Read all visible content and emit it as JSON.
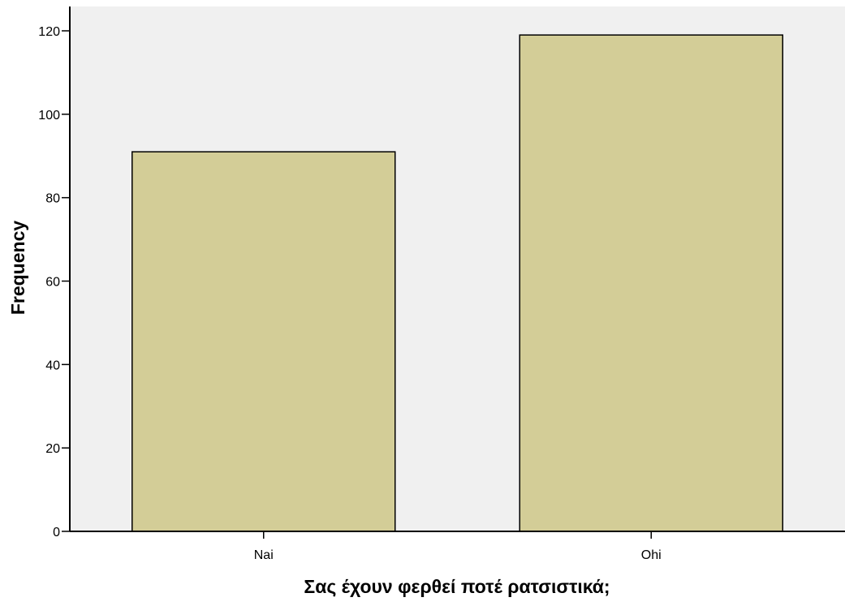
{
  "chart_data": {
    "type": "bar",
    "categories": [
      "Nai",
      "Ohi"
    ],
    "values": [
      91,
      119
    ],
    "title": "",
    "xlabel": "Σας έχουν φερθεί ποτέ ρατσιστικά;",
    "ylabel": "Frequency",
    "ylim": [
      0,
      120
    ],
    "yticks": [
      0,
      20,
      40,
      60,
      80,
      100,
      120
    ],
    "grid": false,
    "legend": "none",
    "colors": {
      "bar_fill": "#d3cd97",
      "bar_stroke": "#000000",
      "plot_background": "#f0f0f0",
      "page_background": "#ffffff"
    }
  }
}
